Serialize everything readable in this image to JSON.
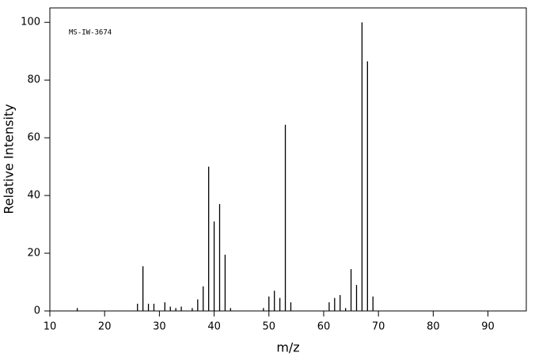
{
  "chart_data": {
    "type": "stem",
    "annotation": "MS-IW-3674",
    "x_label": "m/z",
    "y_label": "Relative Intensity",
    "x": [
      15,
      26,
      27,
      28,
      29,
      31,
      32,
      33,
      34,
      36,
      37,
      38,
      39,
      40,
      41,
      42,
      43,
      49,
      50,
      51,
      52,
      53,
      54,
      61,
      62,
      63,
      64,
      65,
      66,
      67,
      68,
      69
    ],
    "values": [
      1,
      2.5,
      15.5,
      2.5,
      2.5,
      3,
      1.5,
      1,
      1.5,
      1,
      4,
      8.5,
      50,
      31,
      37,
      19.5,
      1,
      1,
      5,
      7,
      4.5,
      64.5,
      3,
      3,
      4.5,
      5.5,
      1,
      14.5,
      9,
      100,
      86.5,
      5
    ],
    "color": "#000000",
    "xlim": [
      10,
      97
    ],
    "ylim": [
      0,
      105
    ],
    "xticks": [
      10,
      20,
      30,
      40,
      50,
      60,
      70,
      80,
      90
    ],
    "yticks": [
      0,
      20,
      40,
      60,
      80,
      100
    ]
  }
}
